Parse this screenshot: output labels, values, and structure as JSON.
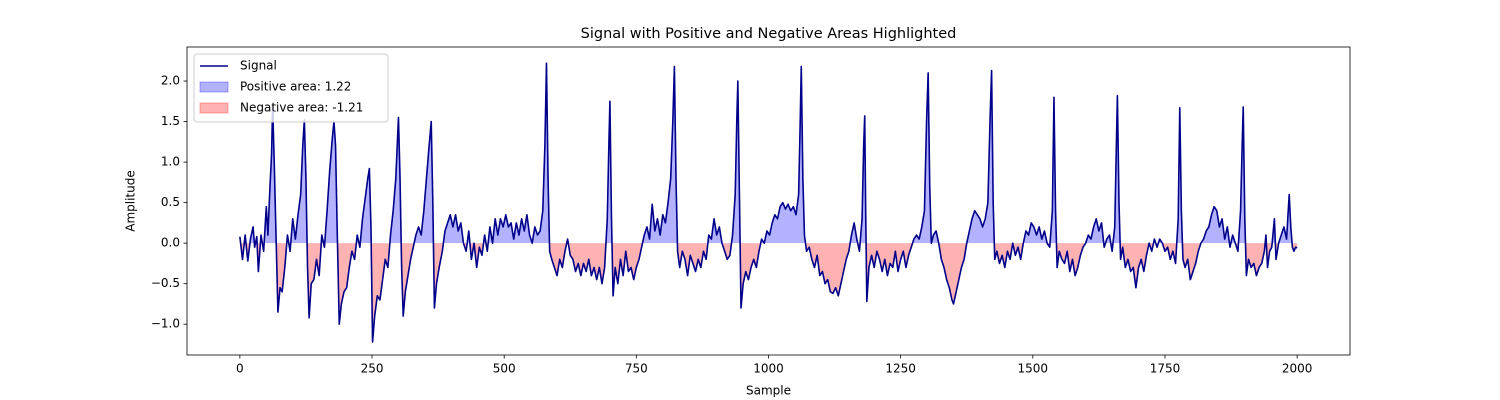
{
  "chart_data": {
    "type": "line",
    "title": "Signal with Positive and Negative Areas Highlighted",
    "xlabel": "Sample",
    "ylabel": "Amplitude",
    "xlim": [
      -100,
      2100
    ],
    "ylim": [
      -1.38,
      2.42
    ],
    "xticks": [
      0,
      250,
      500,
      750,
      1000,
      1250,
      1500,
      1750,
      2000
    ],
    "yticks": [
      {
        "value": -1,
        "label": "−1.0"
      },
      {
        "value": -0.5,
        "label": "−0.5"
      },
      {
        "value": 0,
        "label": "0.0"
      },
      {
        "value": 0.5,
        "label": "0.5"
      },
      {
        "value": 1,
        "label": "1.0"
      },
      {
        "value": 1.5,
        "label": "1.5"
      },
      {
        "value": 2,
        "label": "2.0"
      }
    ],
    "grid": false,
    "legend": "upper left",
    "positive_fill": {
      "name": "Positive area: 1.22",
      "color": "#0000ff"
    },
    "negative_fill": {
      "name": "Negative area: -1.21",
      "color": "#ff0000"
    },
    "x": [
      0,
      5,
      10,
      15,
      20,
      25,
      28,
      32,
      35,
      40,
      45,
      50,
      53,
      57,
      60,
      62,
      65,
      68,
      72,
      76,
      80,
      85,
      90,
      95,
      100,
      105,
      110,
      115,
      119,
      122,
      125,
      128,
      131,
      135,
      140,
      145,
      150,
      155,
      160,
      165,
      170,
      175,
      178,
      181,
      184,
      188,
      192,
      197,
      202,
      207,
      212,
      217,
      222,
      227,
      232,
      237,
      242,
      245,
      248,
      251,
      255,
      260,
      265,
      270,
      275,
      280,
      285,
      290,
      295,
      300,
      303,
      306,
      309,
      313,
      318,
      323,
      328,
      333,
      338,
      343,
      348,
      353,
      358,
      362,
      365,
      368,
      372,
      377,
      383,
      388,
      393,
      398,
      403,
      408,
      413,
      418,
      423,
      428,
      433,
      438,
      443,
      448,
      453,
      458,
      463,
      468,
      473,
      478,
      483,
      488,
      493,
      498,
      503,
      508,
      513,
      518,
      523,
      528,
      533,
      538,
      543,
      548,
      553,
      558,
      563,
      568,
      573,
      577,
      580,
      583,
      586,
      590,
      595,
      600,
      605,
      610,
      615,
      620,
      625,
      630,
      635,
      640,
      645,
      650,
      655,
      660,
      665,
      670,
      675,
      680,
      685,
      690,
      695,
      698,
      700,
      703,
      706,
      710,
      715,
      720,
      725,
      730,
      735,
      740,
      745,
      750,
      755,
      760,
      765,
      770,
      775,
      780,
      785,
      790,
      795,
      800,
      805,
      810,
      815,
      819,
      822,
      825,
      828,
      832,
      837,
      842,
      847,
      852,
      857,
      862,
      867,
      872,
      877,
      882,
      887,
      892,
      897,
      902,
      907,
      912,
      917,
      922,
      927,
      932,
      937,
      940,
      942,
      945,
      948,
      952,
      957,
      962,
      967,
      972,
      977,
      982,
      987,
      992,
      997,
      1002,
      1007,
      1012,
      1017,
      1022,
      1027,
      1032,
      1037,
      1042,
      1047,
      1052,
      1057,
      1060,
      1062,
      1065,
      1068,
      1072,
      1077,
      1082,
      1087,
      1092,
      1097,
      1102,
      1107,
      1112,
      1117,
      1122,
      1127,
      1132,
      1137,
      1142,
      1147,
      1152,
      1157,
      1162,
      1167,
      1172,
      1177,
      1180,
      1182,
      1184,
      1186,
      1190,
      1195,
      1200,
      1205,
      1210,
      1215,
      1220,
      1225,
      1230,
      1235,
      1240,
      1245,
      1250,
      1255,
      1260,
      1265,
      1270,
      1275,
      1280,
      1285,
      1290,
      1295,
      1299,
      1302,
      1305,
      1308,
      1312,
      1317,
      1322,
      1327,
      1332,
      1337,
      1342,
      1347,
      1350,
      1355,
      1360,
      1365,
      1370,
      1375,
      1380,
      1385,
      1390,
      1395,
      1400,
      1405,
      1410,
      1415,
      1419,
      1422,
      1425,
      1428,
      1432,
      1437,
      1442,
      1447,
      1452,
      1457,
      1462,
      1467,
      1472,
      1477,
      1482,
      1487,
      1492,
      1497,
      1502,
      1507,
      1512,
      1517,
      1522,
      1527,
      1532,
      1537,
      1540,
      1543,
      1546,
      1550,
      1555,
      1560,
      1565,
      1570,
      1575,
      1580,
      1585,
      1590,
      1595,
      1600,
      1605,
      1610,
      1615,
      1620,
      1625,
      1630,
      1635,
      1640,
      1645,
      1650,
      1655,
      1658,
      1660,
      1663,
      1666,
      1670,
      1675,
      1680,
      1685,
      1690,
      1695,
      1700,
      1705,
      1710,
      1715,
      1720,
      1725,
      1730,
      1735,
      1740,
      1745,
      1750,
      1755,
      1760,
      1765,
      1770,
      1775,
      1778,
      1781,
      1784,
      1788,
      1793,
      1798,
      1803,
      1808,
      1813,
      1818,
      1823,
      1828,
      1833,
      1838,
      1843,
      1848,
      1853,
      1858,
      1863,
      1868,
      1873,
      1878,
      1883,
      1888,
      1893,
      1896,
      1898,
      1901,
      1904,
      1908,
      1913,
      1918,
      1923,
      1928,
      1933,
      1938,
      1941,
      1944,
      1948,
      1952,
      1957,
      1960,
      1965,
      1970,
      1975,
      1980,
      1985,
      1988,
      1991,
      1994,
      1997,
      2000
    ],
    "series": [
      {
        "name": "Signal",
        "color": "#00008b",
        "values": [
          0.08,
          -0.2,
          0.1,
          -0.22,
          0.05,
          0.2,
          -0.05,
          0.08,
          -0.35,
          0.1,
          -0.1,
          0.45,
          0.1,
          0.7,
          1.1,
          1.7,
          1.0,
          0.2,
          -0.85,
          -0.55,
          -0.6,
          -0.3,
          0.1,
          -0.1,
          0.3,
          0.05,
          0.35,
          0.6,
          1.2,
          1.52,
          0.8,
          -0.3,
          -0.92,
          -0.5,
          -0.45,
          -0.2,
          -0.4,
          0.1,
          -0.05,
          0.4,
          0.9,
          1.3,
          1.5,
          1.2,
          0.2,
          -1.0,
          -0.75,
          -0.6,
          -0.55,
          -0.3,
          -0.1,
          -0.2,
          0.1,
          -0.05,
          0.3,
          0.55,
          0.8,
          0.92,
          0.2,
          -1.22,
          -0.9,
          -0.65,
          -0.7,
          -0.45,
          -0.2,
          -0.3,
          0.1,
          0.4,
          0.8,
          1.55,
          0.8,
          -0.3,
          -0.9,
          -0.6,
          -0.4,
          -0.2,
          -0.05,
          0.1,
          0.2,
          0.1,
          0.4,
          0.8,
          1.2,
          1.5,
          0.5,
          -0.8,
          -0.5,
          -0.3,
          -0.1,
          0.15,
          0.25,
          0.35,
          0.2,
          0.35,
          0.15,
          0.25,
          0.0,
          -0.1,
          0.15,
          -0.2,
          0.0,
          -0.3,
          -0.05,
          -0.15,
          0.1,
          -0.1,
          0.2,
          0.0,
          0.3,
          0.1,
          0.3,
          0.2,
          0.35,
          0.2,
          0.25,
          0.05,
          0.25,
          0.1,
          0.3,
          0.15,
          0.35,
          0.1,
          0.0,
          0.2,
          0.1,
          0.15,
          0.4,
          1.2,
          2.22,
          0.8,
          -0.1,
          -0.2,
          -0.3,
          -0.4,
          -0.2,
          -0.3,
          -0.1,
          0.05,
          -0.15,
          -0.2,
          -0.35,
          -0.25,
          -0.4,
          -0.25,
          -0.35,
          -0.2,
          -0.4,
          -0.3,
          -0.45,
          -0.3,
          -0.5,
          -0.3,
          0.3,
          1.2,
          1.75,
          0.3,
          -0.65,
          -0.3,
          -0.5,
          -0.2,
          -0.4,
          -0.1,
          -0.35,
          -0.3,
          -0.45,
          -0.3,
          -0.2,
          -0.05,
          0.1,
          0.2,
          0.05,
          0.48,
          0.15,
          0.3,
          0.1,
          0.35,
          0.25,
          0.5,
          0.8,
          1.5,
          2.18,
          0.8,
          -0.1,
          -0.3,
          -0.1,
          -0.2,
          -0.4,
          -0.15,
          -0.25,
          -0.35,
          -0.2,
          -0.3,
          -0.1,
          -0.2,
          0.1,
          0.05,
          0.3,
          0.1,
          0.2,
          0.0,
          -0.1,
          -0.2,
          -0.15,
          0.1,
          0.6,
          1.5,
          2.0,
          0.6,
          -0.8,
          -0.5,
          -0.35,
          -0.45,
          -0.3,
          -0.2,
          -0.3,
          -0.1,
          0.05,
          0.0,
          0.15,
          0.1,
          0.25,
          0.35,
          0.3,
          0.45,
          0.5,
          0.42,
          0.48,
          0.4,
          0.45,
          0.35,
          0.6,
          1.5,
          2.18,
          0.8,
          0.1,
          -0.1,
          -0.05,
          -0.2,
          -0.3,
          -0.15,
          -0.4,
          -0.35,
          -0.5,
          -0.45,
          -0.6,
          -0.62,
          -0.55,
          -0.65,
          -0.5,
          -0.35,
          -0.2,
          -0.1,
          0.1,
          0.25,
          0.05,
          -0.1,
          0.3,
          1.2,
          1.57,
          0.3,
          -0.72,
          -0.3,
          -0.15,
          -0.3,
          -0.1,
          -0.2,
          -0.35,
          -0.2,
          -0.4,
          -0.25,
          -0.3,
          -0.1,
          -0.35,
          -0.2,
          -0.1,
          -0.3,
          -0.15,
          -0.05,
          0.05,
          0.1,
          0.05,
          0.2,
          0.4,
          1.5,
          2.1,
          0.7,
          0.0,
          0.1,
          0.15,
          0.0,
          -0.2,
          -0.3,
          -0.45,
          -0.55,
          -0.7,
          -0.75,
          -0.6,
          -0.45,
          -0.3,
          -0.2,
          0.0,
          0.15,
          0.3,
          0.4,
          0.35,
          0.3,
          0.2,
          0.3,
          0.5,
          1.5,
          2.13,
          0.5,
          -0.2,
          -0.1,
          -0.25,
          -0.15,
          -0.3,
          -0.1,
          -0.2,
          0.0,
          -0.15,
          -0.05,
          -0.2,
          0.0,
          0.15,
          0.1,
          0.25,
          0.2,
          0.1,
          0.2,
          0.05,
          0.15,
          0.0,
          -0.05,
          0.4,
          1.8,
          0.4,
          -0.3,
          -0.1,
          -0.2,
          -0.25,
          -0.1,
          -0.35,
          -0.2,
          -0.4,
          -0.3,
          -0.15,
          -0.05,
          0.0,
          0.1,
          0.05,
          0.2,
          0.3,
          0.15,
          0.25,
          -0.05,
          0.05,
          0.1,
          -0.1,
          0.2,
          1.2,
          1.82,
          0.5,
          -0.2,
          -0.05,
          -0.3,
          -0.2,
          -0.35,
          -0.3,
          -0.55,
          -0.3,
          -0.2,
          -0.35,
          -0.15,
          0.0,
          -0.1,
          0.05,
          -0.05,
          0.05,
          0.0,
          -0.1,
          -0.05,
          -0.2,
          -0.1,
          -0.25,
          0.3,
          1.67,
          0.4,
          -0.2,
          -0.3,
          -0.2,
          -0.45,
          -0.35,
          -0.25,
          -0.1,
          0.0,
          0.05,
          0.15,
          0.2,
          0.35,
          0.45,
          0.4,
          0.2,
          0.3,
          0.05,
          0.2,
          -0.05,
          0.1,
          0.0,
          -0.1,
          0.4,
          1.2,
          1.68,
          0.3,
          -0.4,
          -0.2,
          -0.3,
          -0.25,
          -0.4,
          -0.3,
          -0.25,
          -0.1,
          0.1,
          -0.3,
          -0.1,
          -0.05,
          0.3,
          -0.2,
          0.0,
          0.1,
          0.2,
          0.05,
          0.6,
          0.2,
          -0.05,
          -0.1,
          -0.05,
          -0.06
        ]
      }
    ]
  }
}
